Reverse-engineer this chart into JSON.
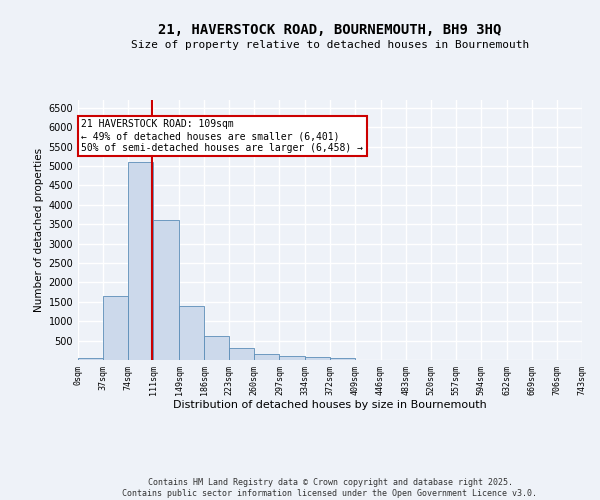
{
  "title_line1": "21, HAVERSTOCK ROAD, BOURNEMOUTH, BH9 3HQ",
  "title_line2": "Size of property relative to detached houses in Bournemouth",
  "xlabel": "Distribution of detached houses by size in Bournemouth",
  "ylabel": "Number of detached properties",
  "bar_color": "#ccd9eb",
  "bar_edge_color": "#5b8db8",
  "background_color": "#eef2f8",
  "grid_color": "#ffffff",
  "vline_x": 109,
  "vline_color": "#cc0000",
  "annotation_text": "21 HAVERSTOCK ROAD: 109sqm\n← 49% of detached houses are smaller (6,401)\n50% of semi-detached houses are larger (6,458) →",
  "annotation_box_color": "#ffffff",
  "annotation_box_edge": "#cc0000",
  "bin_edges": [
    0,
    37,
    74,
    111,
    149,
    186,
    223,
    260,
    297,
    334,
    372,
    409,
    446,
    483,
    520,
    557,
    594,
    632,
    669,
    706,
    743
  ],
  "bar_heights": [
    60,
    1650,
    5100,
    3620,
    1400,
    610,
    310,
    150,
    110,
    70,
    40,
    5,
    0,
    0,
    0,
    0,
    0,
    0,
    0,
    0
  ],
  "ylim": [
    0,
    6700
  ],
  "yticks": [
    0,
    500,
    1000,
    1500,
    2000,
    2500,
    3000,
    3500,
    4000,
    4500,
    5000,
    5500,
    6000,
    6500
  ],
  "footer_text": "Contains HM Land Registry data © Crown copyright and database right 2025.\nContains public sector information licensed under the Open Government Licence v3.0.",
  "tick_labels": [
    "0sqm",
    "37sqm",
    "74sqm",
    "111sqm",
    "149sqm",
    "186sqm",
    "223sqm",
    "260sqm",
    "297sqm",
    "334sqm",
    "372sqm",
    "409sqm",
    "446sqm",
    "483sqm",
    "520sqm",
    "557sqm",
    "594sqm",
    "632sqm",
    "669sqm",
    "706sqm",
    "743sqm"
  ]
}
